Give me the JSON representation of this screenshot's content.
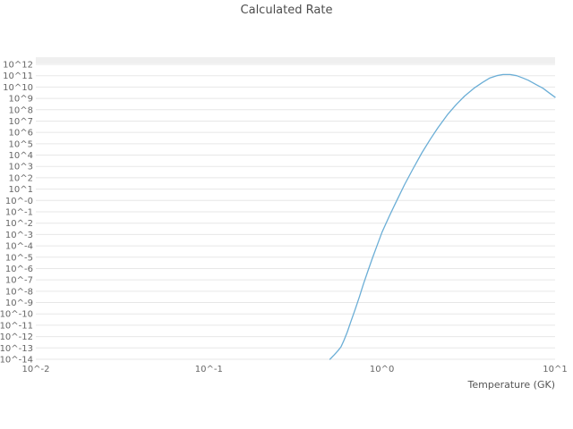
{
  "title": "Calculated Rate",
  "x_axis": {
    "label": "Temperature (GK)",
    "tick_labels": [
      "10^-2",
      "10^-1",
      "10^0",
      "10^1"
    ],
    "tick_exponents": [
      -2,
      -1,
      0,
      1
    ]
  },
  "y_axis": {
    "tick_labels": [
      "10^12",
      "10^11",
      "10^10",
      "10^9",
      "10^8",
      "10^7",
      "10^6",
      "10^5",
      "10^4",
      "10^3",
      "10^2",
      "10^1",
      "10^-0",
      "10^-1",
      "10^-2",
      "10^-3",
      "10^-4",
      "10^-5",
      "10^-6",
      "10^-7",
      "10^-8",
      "10^-9",
      "10^-10",
      "10^-11",
      "10^-12",
      "10^-13",
      "10^-14"
    ],
    "tick_exponents": [
      12,
      11,
      10,
      9,
      8,
      7,
      6,
      5,
      4,
      3,
      2,
      1,
      0,
      -1,
      -2,
      -3,
      -4,
      -5,
      -6,
      -7,
      -8,
      -9,
      -10,
      -11,
      -12,
      -13,
      -14
    ]
  },
  "chart_data": {
    "type": "line",
    "title": "Calculated Rate",
    "xlabel": "Temperature (GK)",
    "ylabel": "",
    "x_scale": "log",
    "y_scale": "log",
    "x_log10_range": [
      -2,
      1
    ],
    "y_log10_range": [
      -14,
      12
    ],
    "grid": "horizontal-only",
    "legend": "none",
    "line_color": "#6baed6",
    "series": [
      {
        "name": "Calculated Rate",
        "x": [
          0.5,
          0.53,
          0.56,
          0.58,
          0.6,
          0.63,
          0.66,
          0.7,
          0.74,
          0.78,
          0.83,
          0.88,
          0.94,
          1.0,
          1.1,
          1.2,
          1.35,
          1.5,
          1.7,
          1.9,
          2.1,
          2.4,
          2.7,
          3.0,
          3.4,
          3.8,
          4.2,
          4.6,
          5.0,
          5.5,
          6.0,
          6.5,
          7.0,
          7.8,
          8.5,
          9.2,
          10.0
        ],
        "log10_y": [
          -14.0,
          -13.6,
          -13.2,
          -12.9,
          -12.4,
          -11.6,
          -10.7,
          -9.6,
          -8.5,
          -7.4,
          -6.2,
          -5.1,
          -3.9,
          -2.8,
          -1.4,
          -0.2,
          1.4,
          2.7,
          4.2,
          5.4,
          6.4,
          7.6,
          8.5,
          9.2,
          9.9,
          10.4,
          10.8,
          11.0,
          11.1,
          11.1,
          11.0,
          10.8,
          10.6,
          10.2,
          9.9,
          9.5,
          9.1
        ]
      }
    ]
  },
  "colors": {
    "line": "#6baed6",
    "gridline": "#e7e7e7",
    "top_band": "#efefef",
    "tick_text": "#666666",
    "title_text": "#4d4d4d"
  }
}
